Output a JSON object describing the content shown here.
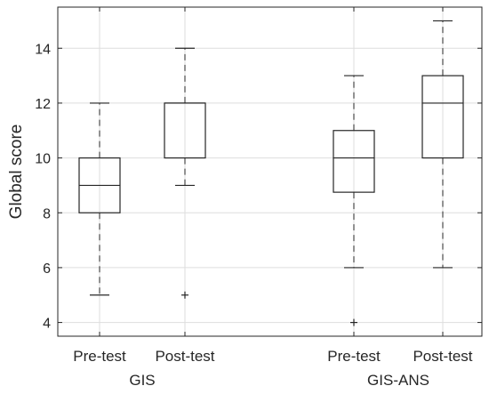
{
  "chart_data": {
    "type": "box",
    "title": "",
    "xlabel": "",
    "ylabel": "Global score",
    "ylim": [
      3.5,
      15.5
    ],
    "yticks": [
      4,
      6,
      8,
      10,
      12,
      14
    ],
    "grid": true,
    "groups": [
      {
        "label": "GIS",
        "boxes": [
          {
            "label": "Pre-test",
            "whisker_low": 5,
            "q1": 8,
            "median": 9,
            "q3": 10,
            "whisker_high": 12,
            "outliers": []
          },
          {
            "label": "Post-test",
            "whisker_low": 9,
            "q1": 10,
            "median": 12,
            "q3": 12,
            "whisker_high": 14,
            "outliers": [
              5
            ]
          }
        ]
      },
      {
        "label": "GIS-ANS",
        "boxes": [
          {
            "label": "Pre-test",
            "whisker_low": 6,
            "q1": 8.75,
            "median": 10,
            "q3": 11,
            "whisker_high": 13,
            "outliers": [
              4
            ]
          },
          {
            "label": "Post-test",
            "whisker_low": 6,
            "q1": 10,
            "median": 12,
            "q3": 13,
            "whisker_high": 15,
            "outliers": []
          }
        ]
      }
    ]
  }
}
